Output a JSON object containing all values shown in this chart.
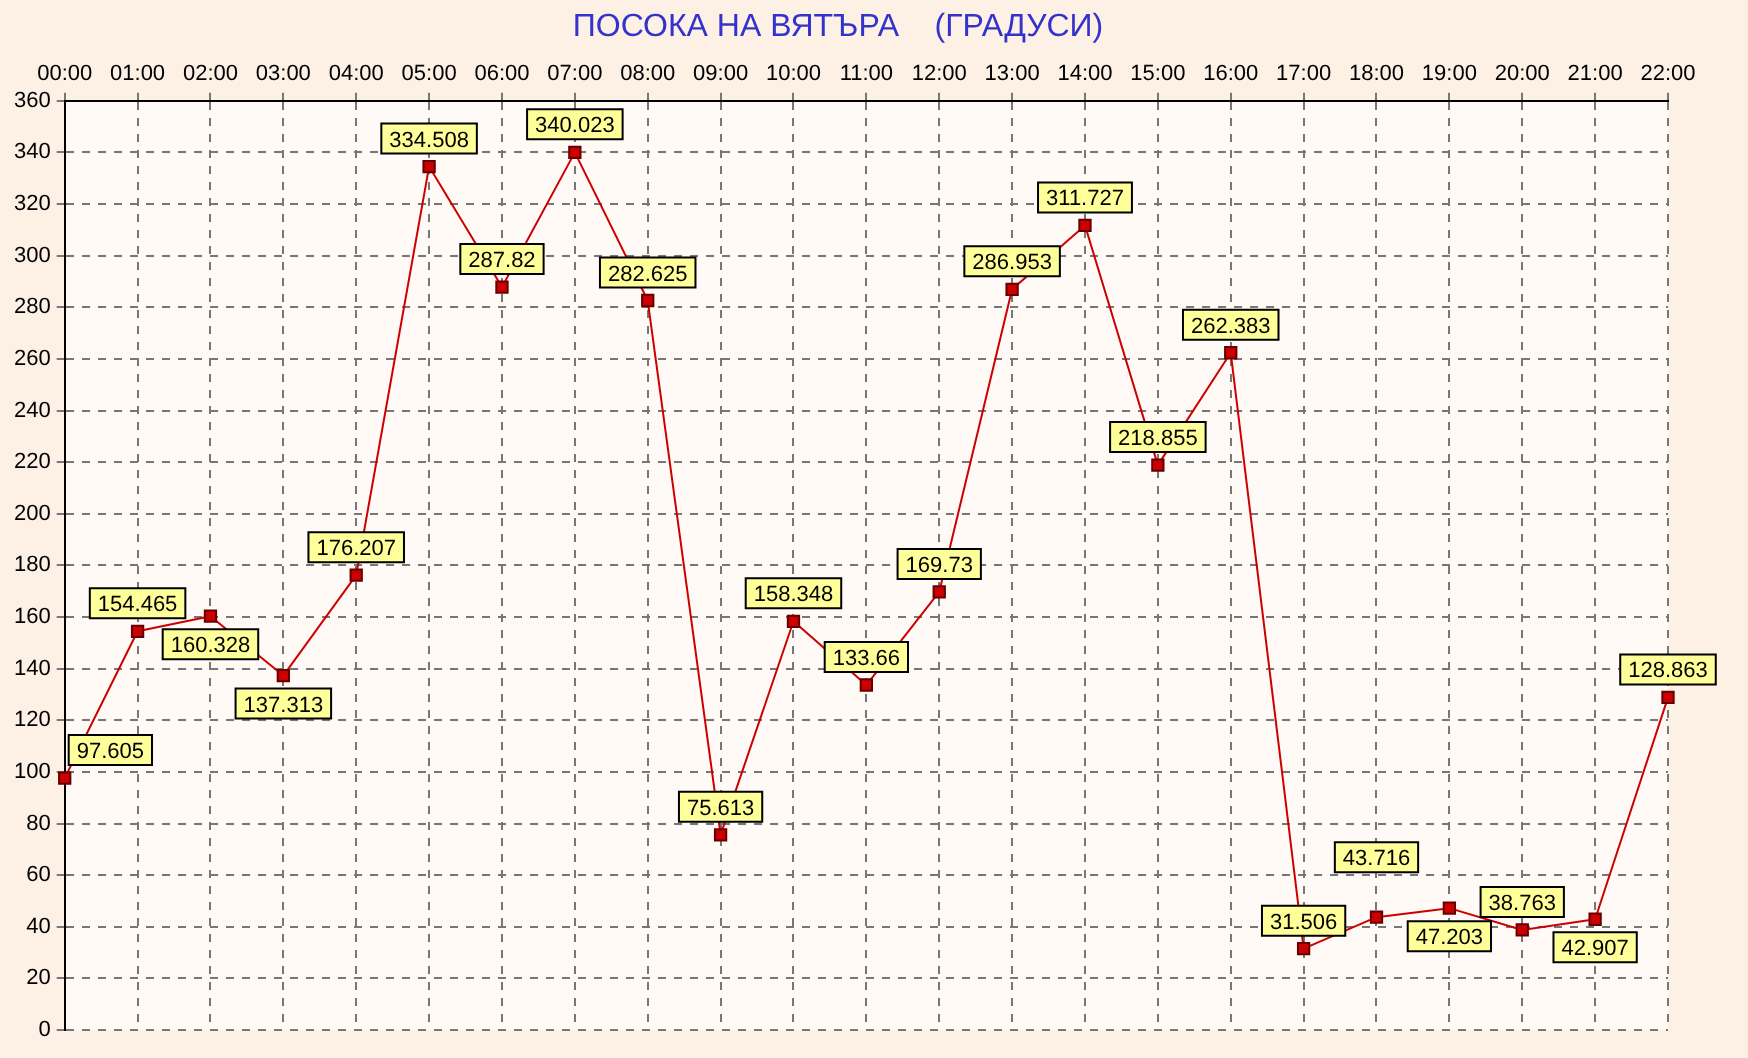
{
  "chart_data": {
    "type": "line",
    "title": "ПОСОКА НА ВЯТЪРА    (ГРАДУСИ)",
    "categories": [
      "00:00",
      "01:00",
      "02:00",
      "03:00",
      "04:00",
      "05:00",
      "06:00",
      "07:00",
      "08:00",
      "09:00",
      "10:00",
      "11:00",
      "12:00",
      "13:00",
      "14:00",
      "15:00",
      "16:00",
      "17:00",
      "18:00",
      "19:00",
      "20:00",
      "21:00",
      "22:00"
    ],
    "series": [
      {
        "color": "#cc0000",
        "values": [
          97.605,
          154.465,
          160.328,
          137.313,
          176.207,
          334.508,
          287.82,
          340.023,
          282.625,
          75.613,
          158.348,
          133.66,
          169.73,
          286.953,
          311.727,
          218.855,
          262.383,
          31.506,
          43.716,
          47.203,
          38.763,
          42.907,
          128.863
        ]
      }
    ],
    "ylim": [
      0,
      360
    ],
    "yticks": [
      0,
      20,
      40,
      60,
      80,
      100,
      120,
      140,
      160,
      180,
      200,
      220,
      240,
      260,
      280,
      300,
      320,
      340,
      360
    ],
    "grid": true,
    "legend": false,
    "marker": "square",
    "line_style": "solid",
    "data_labels": true
  }
}
